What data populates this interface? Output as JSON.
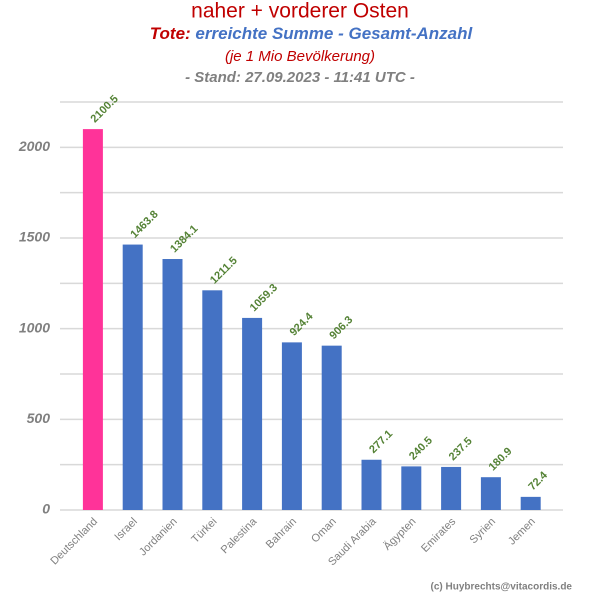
{
  "chart_data": {
    "type": "bar",
    "title": "naher + vorderer Osten",
    "subtitle_prefix": "Tote:",
    "subtitle": "erreichte Summe - Gesamt-Anzahl",
    "note": "(je 1 Mio Bevölkerung)",
    "date_line": "- Stand: 27.09.2023 - 11:41 UTC -",
    "credit": "(c) Huybrechts@vitacordis.de",
    "categories": [
      "Deutschland",
      "Israel",
      "Jordanien",
      "Türkei",
      "Palestina",
      "Bahrain",
      "Oman",
      "Saudi Arabia",
      "Ägypten",
      "Emirates",
      "Syrien",
      "Jemen"
    ],
    "values": [
      2100.5,
      1463.8,
      1384.1,
      1211.5,
      1059.3,
      924.4,
      906.3,
      277.1,
      240.5,
      237.5,
      180.9,
      72.4
    ],
    "colors": [
      "#ff3399",
      "#4472c4",
      "#4472c4",
      "#4472c4",
      "#4472c4",
      "#4472c4",
      "#4472c4",
      "#4472c4",
      "#4472c4",
      "#4472c4",
      "#4472c4",
      "#4472c4"
    ],
    "value_label_color": "#548235",
    "ylim": [
      0,
      2250
    ],
    "yticks": [
      0,
      500,
      1000,
      1500,
      2000
    ],
    "minor_yticks": [
      250,
      750,
      1250,
      1750,
      2250
    ],
    "grid": true
  }
}
